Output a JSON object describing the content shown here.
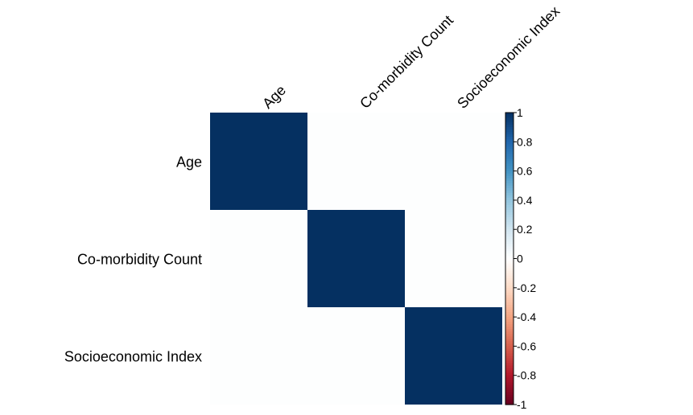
{
  "chart_data": {
    "type": "heatmap",
    "variables": [
      "Age",
      "Co-morbidity Count",
      "Socioeconomic Index"
    ],
    "matrix": [
      [
        1,
        0.01,
        0.01
      ],
      [
        0.01,
        1,
        0.01
      ],
      [
        0.01,
        0.01,
        1
      ]
    ],
    "colorbar": {
      "range": [
        -1,
        1
      ],
      "ticks": [
        "1",
        "0.8",
        "0.6",
        "0.4",
        "0.2",
        "0",
        "-0.2",
        "-0.4",
        "-0.6",
        "-0.8",
        "-1"
      ],
      "tick_values": [
        1,
        0.8,
        0.6,
        0.4,
        0.2,
        0,
        -0.2,
        -0.4,
        -0.6,
        -0.8,
        -1
      ],
      "colors": [
        "#67001F",
        "#B2182B",
        "#D6604D",
        "#F4A582",
        "#FDDBC7",
        "#FFFFFF",
        "#D1E5F0",
        "#92C5DE",
        "#4393C3",
        "#2166AC",
        "#053061"
      ]
    }
  }
}
